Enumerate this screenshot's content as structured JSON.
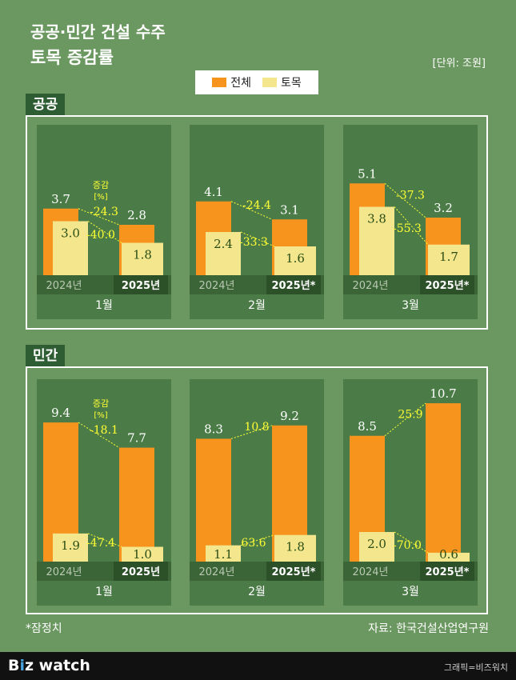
{
  "header": {
    "title_line1": "공공·민간 건설 수주",
    "title_line2": "토목 증감률",
    "unit": "[단위: 조원]"
  },
  "legend": {
    "total": "전체",
    "civil": "토목"
  },
  "colors": {
    "background": "#6b9760",
    "panel": "#4b7c47",
    "total": "#f7941d",
    "civil": "#f3e68c",
    "change_label": "#ffff33",
    "value_label": "#ffffff",
    "civil_value_label": "#2b4d16",
    "section_label_bg": "#2f5d33"
  },
  "change_header": {
    "line1": "증감",
    "line2": "[%]"
  },
  "footer": {
    "note": "*잠정치",
    "source": "자료: 한국건설산업연구원",
    "brand_b": "B",
    "brand_i": "i",
    "brand_rest": "z watch",
    "credit": "그래픽=비즈워치"
  },
  "chart_data": [
    {
      "type": "bar",
      "section": "공공",
      "ylim": [
        0,
        11
      ],
      "series": [
        {
          "name": "전체"
        },
        {
          "name": "토목"
        }
      ],
      "months": [
        {
          "month": "1월",
          "x_labels": [
            "2024년",
            "2025년"
          ],
          "total": [
            3.7,
            2.8
          ],
          "civil": [
            3.0,
            1.8
          ],
          "total_change": -24.3,
          "civil_change": -40.0,
          "show_change_header": true
        },
        {
          "month": "2월",
          "x_labels": [
            "2024년",
            "2025년*"
          ],
          "total": [
            4.1,
            3.1
          ],
          "civil": [
            2.4,
            1.6
          ],
          "total_change": -24.4,
          "civil_change": -33.3,
          "show_change_header": false
        },
        {
          "month": "3월",
          "x_labels": [
            "2024년",
            "2025년*"
          ],
          "total": [
            5.1,
            3.2
          ],
          "civil": [
            3.8,
            1.7
          ],
          "total_change": -37.3,
          "civil_change": -55.3,
          "show_change_header": false
        }
      ]
    },
    {
      "type": "bar",
      "section": "민간",
      "ylim": [
        0,
        11
      ],
      "series": [
        {
          "name": "전체"
        },
        {
          "name": "토목"
        }
      ],
      "months": [
        {
          "month": "1월",
          "x_labels": [
            "2024년",
            "2025년"
          ],
          "total": [
            9.4,
            7.7
          ],
          "civil": [
            1.9,
            1.0
          ],
          "total_change": -18.1,
          "civil_change": -47.4,
          "show_change_header": true
        },
        {
          "month": "2월",
          "x_labels": [
            "2024년",
            "2025년*"
          ],
          "total": [
            8.3,
            9.2
          ],
          "civil": [
            1.1,
            1.8
          ],
          "total_change": 10.8,
          "civil_change": 63.6,
          "show_change_header": false
        },
        {
          "month": "3월",
          "x_labels": [
            "2024년",
            "2025년*"
          ],
          "total": [
            8.5,
            10.7
          ],
          "civil": [
            2.0,
            0.6
          ],
          "total_change": 25.9,
          "civil_change": -70.0,
          "show_change_header": false
        }
      ]
    }
  ]
}
